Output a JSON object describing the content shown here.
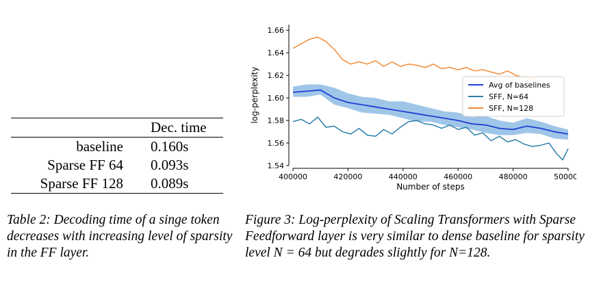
{
  "table": {
    "header": [
      "",
      "Dec. time"
    ],
    "rows": [
      {
        "label": "baseline",
        "value": "0.160s"
      },
      {
        "label": "Sparse FF 64",
        "value": "0.093s"
      },
      {
        "label": "Sparse FF 128",
        "value": "0.089s"
      }
    ],
    "caption": "Table 2: Decoding time of a singe token decreases with increasing level of sparsity in the FF layer."
  },
  "figure": {
    "caption": "Figure 3: Log-perplexity of Scaling Transformers with Sparse Feedforward layer is very similar to dense baseline for sparsity level N = 64 but degrades slightly for N=128."
  },
  "chart_data": {
    "type": "line",
    "xlabel": "Number of steps",
    "ylabel": "log-perplexity",
    "xlim": [
      400000,
      500000
    ],
    "ylim": [
      1.54,
      1.665
    ],
    "xticks": [
      400000,
      420000,
      440000,
      460000,
      480000,
      500000
    ],
    "yticks": [
      1.54,
      1.56,
      1.58,
      1.6,
      1.62,
      1.64,
      1.66
    ],
    "ytick_labels": [
      "1.54",
      "1.56",
      "1.58",
      "1.60",
      "1.62",
      "1.64",
      "1.66"
    ],
    "legend_position": "right",
    "grid": false,
    "series": [
      {
        "name": "Avg of baselines",
        "color": "#1f3fd4",
        "band": {
          "color": "#7fb3e0",
          "lower_offset": [
            0.004,
            0.005,
            0.004,
            0.006,
            0.005,
            0.007,
            0.006,
            0.005,
            0.006,
            0.007,
            0.005,
            0.006,
            0.006,
            0.005,
            0.007,
            0.006,
            0.005,
            0.006,
            0.005,
            0.006,
            0.005
          ],
          "upper_offset": [
            0.005,
            0.006,
            0.005,
            0.009,
            0.008,
            0.007,
            0.008,
            0.007,
            0.009,
            0.008,
            0.007,
            0.006,
            0.007,
            0.006,
            0.008,
            0.007,
            0.006,
            0.007,
            0.006,
            0.005,
            0.004
          ]
        },
        "x": [
          400000,
          405000,
          410000,
          415000,
          420000,
          425000,
          430000,
          435000,
          440000,
          445000,
          450000,
          455000,
          460000,
          465000,
          470000,
          475000,
          480000,
          485000,
          490000,
          495000,
          500000
        ],
        "y": [
          1.605,
          1.606,
          1.607,
          1.6,
          1.596,
          1.594,
          1.592,
          1.59,
          1.588,
          1.586,
          1.584,
          1.582,
          1.58,
          1.577,
          1.576,
          1.573,
          1.572,
          1.575,
          1.573,
          1.57,
          1.568
        ]
      },
      {
        "name": "SFF, N=64",
        "color": "#2a7fa8",
        "x": [
          400000,
          403000,
          406000,
          409000,
          412000,
          415000,
          418000,
          421000,
          424000,
          427000,
          430000,
          433000,
          436000,
          439000,
          442000,
          445000,
          448000,
          451000,
          454000,
          457000,
          460000,
          463000,
          466000,
          469000,
          472000,
          475000,
          478000,
          481000,
          484000,
          487000,
          490000,
          493000,
          496000,
          498000,
          500000
        ],
        "y": [
          1.579,
          1.581,
          1.577,
          1.583,
          1.574,
          1.575,
          1.57,
          1.568,
          1.573,
          1.567,
          1.566,
          1.572,
          1.568,
          1.574,
          1.579,
          1.58,
          1.577,
          1.576,
          1.573,
          1.576,
          1.572,
          1.574,
          1.567,
          1.569,
          1.562,
          1.566,
          1.561,
          1.563,
          1.559,
          1.557,
          1.558,
          1.56,
          1.55,
          1.545,
          1.555
        ]
      },
      {
        "name": "SFF, N=128",
        "color": "#f28c38",
        "x": [
          400000,
          403000,
          406000,
          409000,
          412000,
          415000,
          418000,
          421000,
          424000,
          427000,
          430000,
          433000,
          436000,
          439000,
          442000,
          445000,
          448000,
          451000,
          454000,
          457000,
          460000,
          463000,
          466000,
          469000,
          472000,
          475000,
          478000,
          481000,
          484000,
          487000,
          490000
        ],
        "y": [
          1.644,
          1.648,
          1.652,
          1.654,
          1.65,
          1.643,
          1.634,
          1.63,
          1.632,
          1.63,
          1.633,
          1.628,
          1.632,
          1.628,
          1.63,
          1.629,
          1.627,
          1.63,
          1.626,
          1.627,
          1.625,
          1.627,
          1.624,
          1.625,
          1.623,
          1.621,
          1.624,
          1.62,
          1.618,
          1.617,
          1.619
        ]
      }
    ]
  }
}
